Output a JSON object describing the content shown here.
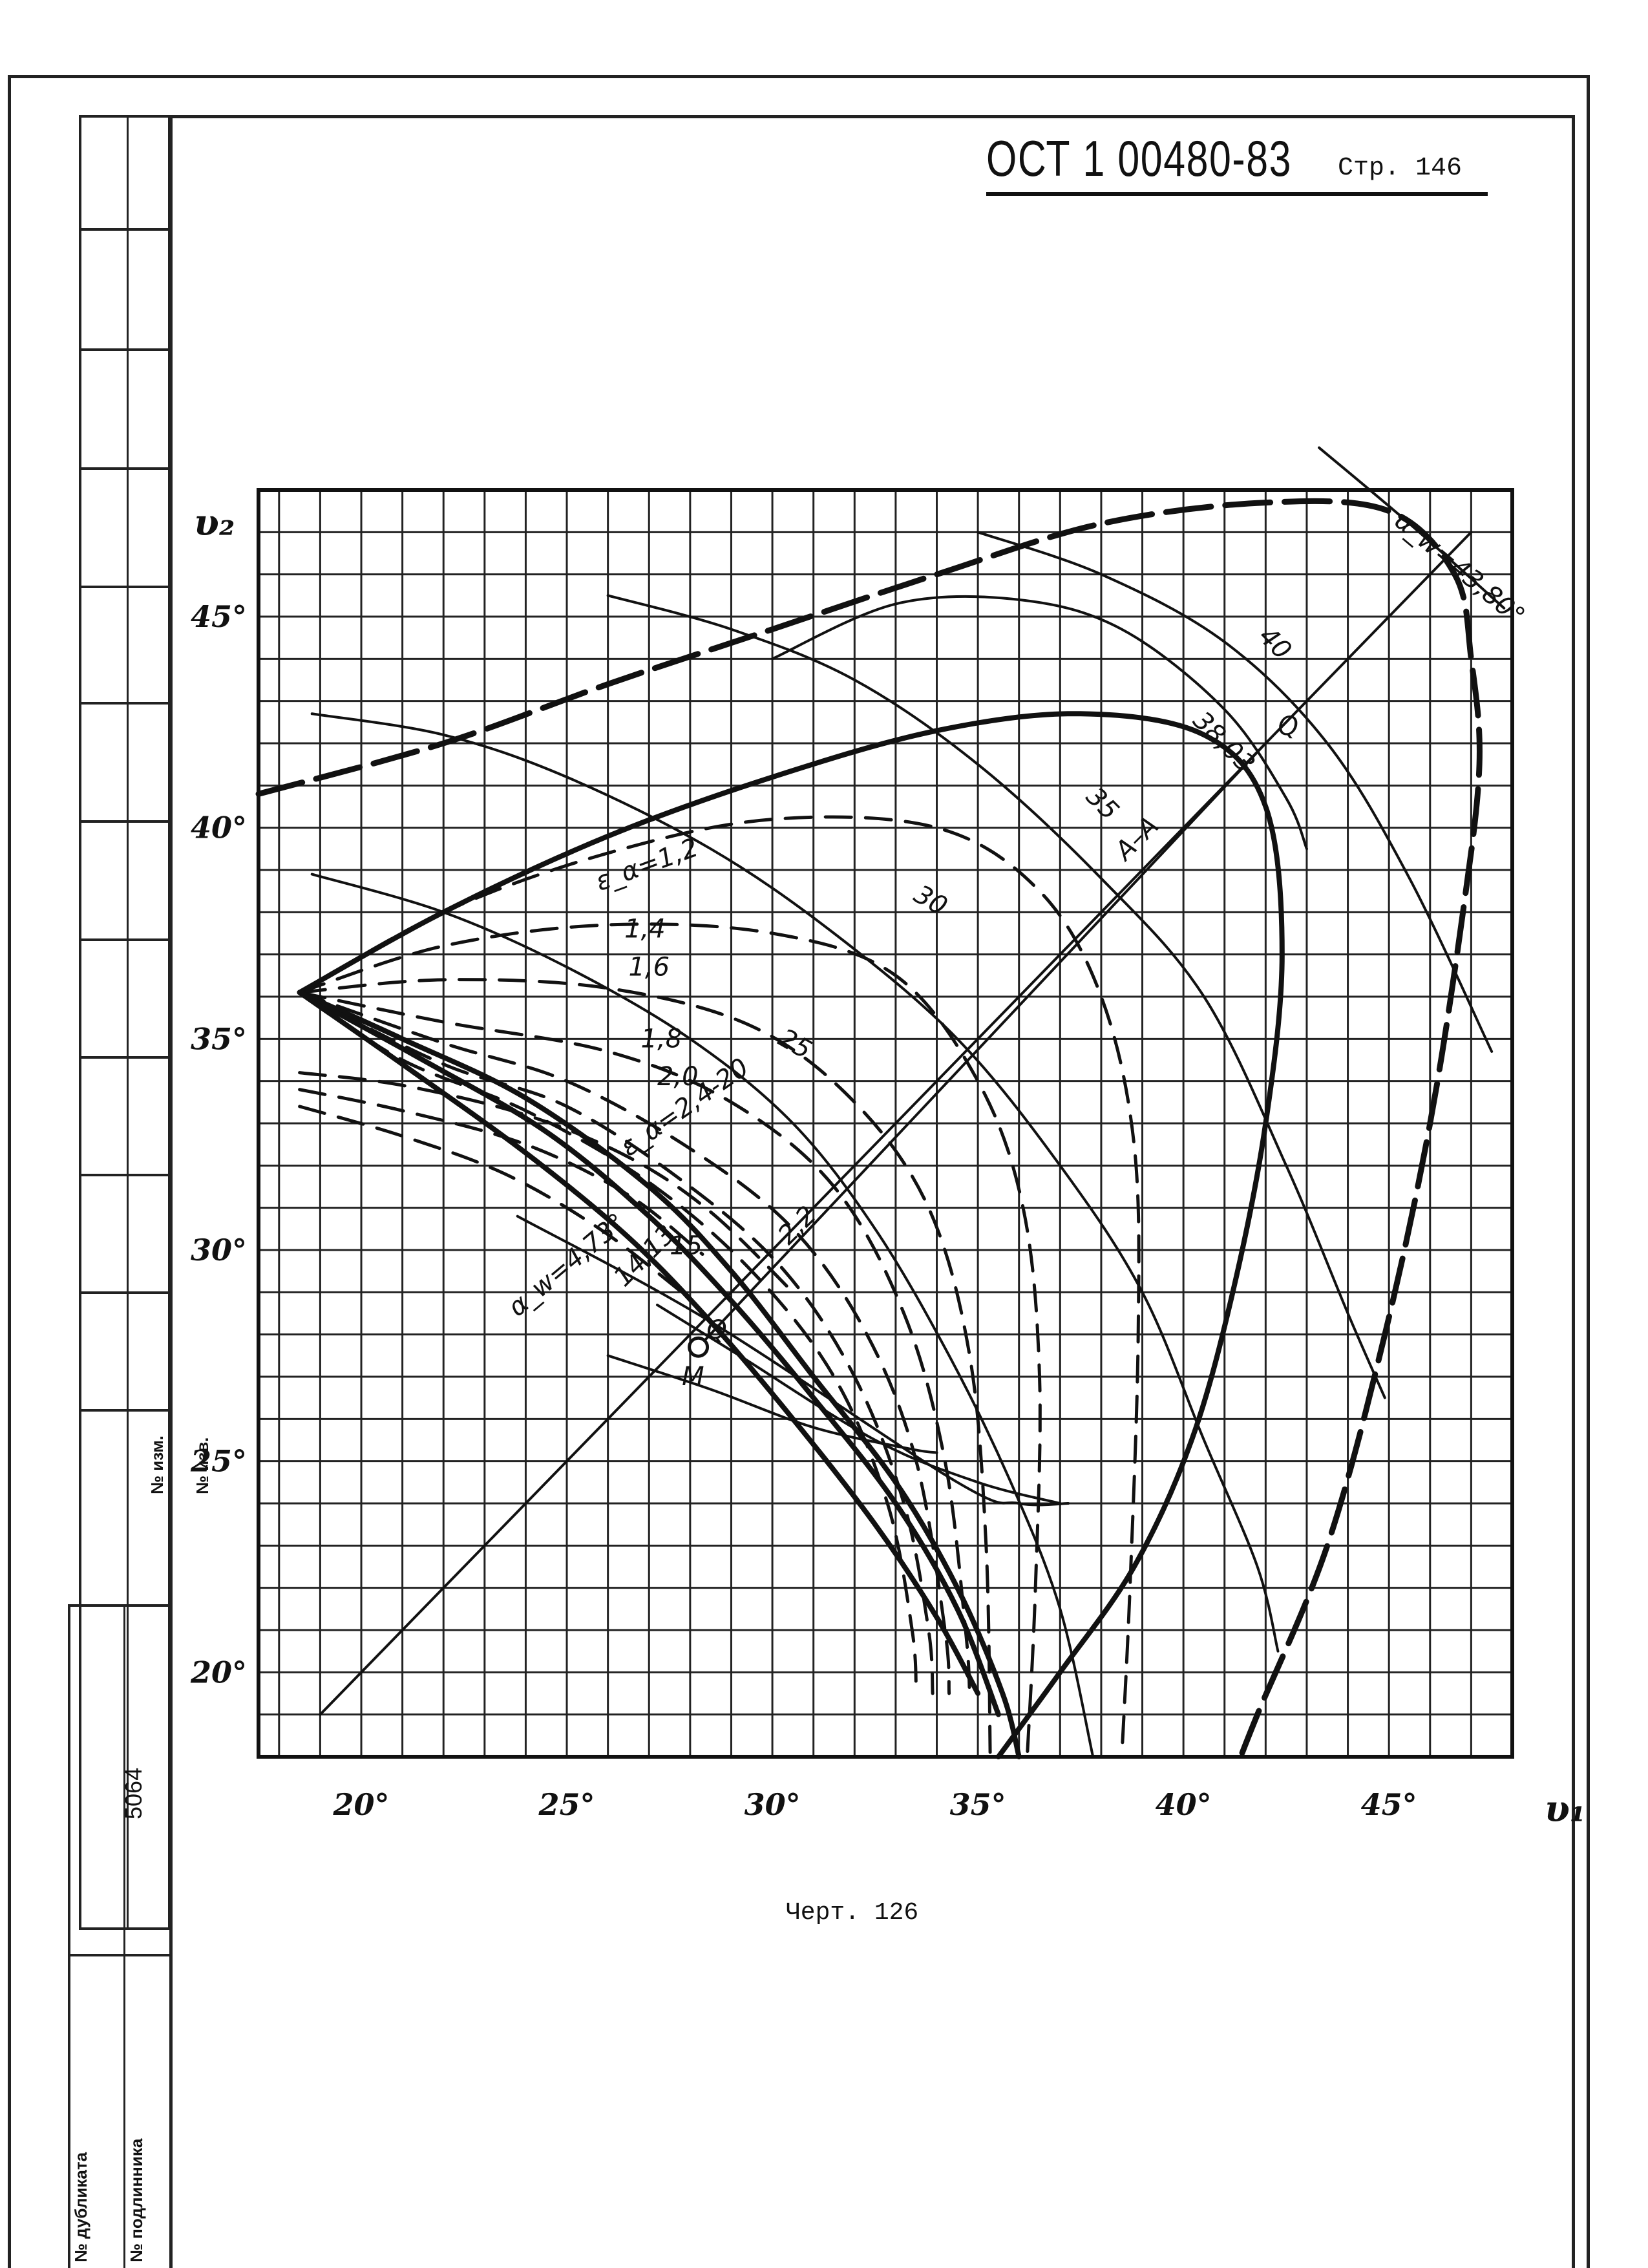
{
  "header": {
    "doc_number": "ОСТ 1 00480-83",
    "page_label": "Стр. 146"
  },
  "caption": "Черт. 126",
  "side_stamp": {
    "serial": "5064",
    "labels": [
      "№ изм.",
      "№ изв.",
      "№ дубликата",
      "№ подлинника"
    ]
  },
  "chart_data": {
    "type": "line",
    "xlabel": "υ₁",
    "ylabel": "υ₂",
    "xlim": [
      17.5,
      48
    ],
    "ylim": [
      18,
      48
    ],
    "x_ticks": [
      {
        "v": 20,
        "t": "20°"
      },
      {
        "v": 25,
        "t": "25°"
      },
      {
        "v": 30,
        "t": "30°"
      },
      {
        "v": 35,
        "t": "35°"
      },
      {
        "v": 40,
        "t": "40°"
      },
      {
        "v": 45,
        "t": "45°"
      }
    ],
    "y_ticks": [
      {
        "v": 20,
        "t": "20°"
      },
      {
        "v": 25,
        "t": "25°"
      },
      {
        "v": 30,
        "t": "30°"
      },
      {
        "v": 35,
        "t": "35°"
      },
      {
        "v": 40,
        "t": "40°"
      },
      {
        "v": 45,
        "t": "45°"
      }
    ],
    "grid": true,
    "series": [
      {
        "style": "thick-dash",
        "points": [
          [
            17.5,
            40.8
          ],
          [
            22,
            42
          ],
          [
            26,
            43.4
          ],
          [
            30,
            44.7
          ],
          [
            34,
            46
          ],
          [
            38,
            47.2
          ],
          [
            42,
            47.7
          ],
          [
            45,
            47.5
          ],
          [
            46.6,
            46
          ],
          [
            47,
            44
          ],
          [
            47.2,
            41.5
          ],
          [
            46.8,
            38
          ],
          [
            46,
            33
          ],
          [
            44.9,
            28
          ],
          [
            43.5,
            23
          ],
          [
            41.8,
            19
          ],
          [
            41.2,
            17.5
          ]
        ]
      },
      {
        "style": "thick",
        "points": [
          [
            18.5,
            36.1
          ],
          [
            22,
            38
          ],
          [
            26,
            39.8
          ],
          [
            30,
            41.2
          ],
          [
            34,
            42.3
          ],
          [
            37.5,
            42.7
          ],
          [
            40.5,
            42.2
          ],
          [
            42,
            40.5
          ],
          [
            42.4,
            37
          ],
          [
            42,
            33
          ],
          [
            41.2,
            29
          ],
          [
            40.2,
            25.5
          ],
          [
            38.8,
            22.5
          ],
          [
            37,
            20
          ],
          [
            35.5,
            18
          ]
        ]
      },
      {
        "style": "dash",
        "points": [
          [
            18.5,
            36.1
          ],
          [
            22,
            38
          ],
          [
            26,
            39.4
          ],
          [
            30,
            40.2
          ],
          [
            34,
            40
          ],
          [
            36.5,
            38.5
          ],
          [
            38,
            36
          ],
          [
            38.8,
            32.5
          ],
          [
            38.9,
            28
          ],
          [
            38.7,
            22
          ],
          [
            38.5,
            18
          ]
        ]
      },
      {
        "style": "dash",
        "points": [
          [
            18.5,
            36.1
          ],
          [
            22,
            37.2
          ],
          [
            26,
            37.7
          ],
          [
            30,
            37.5
          ],
          [
            33,
            36.5
          ],
          [
            35,
            34
          ],
          [
            36.1,
            31
          ],
          [
            36.5,
            27
          ],
          [
            36.4,
            22
          ],
          [
            36.2,
            18
          ]
        ]
      },
      {
        "style": "dash",
        "points": [
          [
            18.5,
            36.1
          ],
          [
            22,
            36.4
          ],
          [
            26,
            36.2
          ],
          [
            29.5,
            35.3
          ],
          [
            32,
            33.5
          ],
          [
            33.8,
            31
          ],
          [
            34.8,
            27.5
          ],
          [
            35.2,
            23
          ],
          [
            35.3,
            18
          ]
        ]
      },
      {
        "style": "dash",
        "points": [
          [
            18.5,
            36.1
          ],
          [
            22,
            35.4
          ],
          [
            26,
            34.7
          ],
          [
            29,
            33.5
          ],
          [
            31.5,
            31.5
          ],
          [
            33.2,
            28.5
          ],
          [
            34.2,
            25
          ],
          [
            34.7,
            21
          ],
          [
            34.8,
            19.5
          ]
        ]
      },
      {
        "style": "dash",
        "points": [
          [
            18.5,
            36.1
          ],
          [
            22,
            34.9
          ],
          [
            25,
            34
          ],
          [
            28,
            32.4
          ],
          [
            30.5,
            30.5
          ],
          [
            32.3,
            28
          ],
          [
            33.5,
            25
          ],
          [
            34.2,
            21
          ],
          [
            34.3,
            19.5
          ]
        ]
      },
      {
        "style": "dash",
        "points": [
          [
            18.5,
            36.1
          ],
          [
            22,
            34.4
          ],
          [
            25,
            33.4
          ],
          [
            28,
            31.5
          ],
          [
            30.3,
            29.5
          ],
          [
            32,
            27
          ],
          [
            33.2,
            24
          ],
          [
            33.8,
            21
          ],
          [
            33.9,
            19.5
          ]
        ]
      },
      {
        "style": "dash",
        "points": [
          [
            18.5,
            36.1
          ],
          [
            21,
            34.5
          ],
          [
            24,
            33.3
          ],
          [
            27,
            31.6
          ],
          [
            29.5,
            29.5
          ],
          [
            31.5,
            27
          ],
          [
            32.8,
            24
          ],
          [
            33.4,
            21
          ],
          [
            33.5,
            19.5
          ]
        ]
      },
      {
        "style": "thick",
        "points": [
          [
            18.5,
            36.1
          ],
          [
            21,
            35
          ],
          [
            24,
            33.6
          ],
          [
            27,
            31.5
          ],
          [
            29,
            29.5
          ],
          [
            31,
            27
          ],
          [
            33,
            24.5
          ],
          [
            34.5,
            22
          ],
          [
            35.6,
            19.5
          ],
          [
            36,
            18
          ]
        ]
      },
      {
        "style": "thick",
        "points": [
          [
            18.5,
            36.1
          ],
          [
            21.5,
            34.5
          ],
          [
            24.5,
            32.8
          ],
          [
            27,
            30.8
          ],
          [
            29,
            28.8
          ],
          [
            31,
            26.5
          ],
          [
            33,
            24
          ],
          [
            34.5,
            21.5
          ],
          [
            35.5,
            19
          ]
        ]
      },
      {
        "style": "thick",
        "points": [
          [
            18.5,
            36.1
          ],
          [
            21,
            34.4
          ],
          [
            24,
            32.3
          ],
          [
            26.5,
            30.3
          ],
          [
            28.5,
            28.3
          ],
          [
            30.5,
            26
          ],
          [
            32.5,
            23.5
          ],
          [
            34,
            21.3
          ],
          [
            35,
            19.5
          ]
        ]
      },
      {
        "style": "dash",
        "points": [
          [
            18.5,
            34.2
          ],
          [
            21,
            33.9
          ],
          [
            24,
            33.2
          ],
          [
            26.5,
            32.2
          ],
          [
            28.5,
            30.9
          ],
          [
            30.5,
            29
          ]
        ]
      },
      {
        "style": "dash",
        "points": [
          [
            18.5,
            33.8
          ],
          [
            21,
            33.3
          ],
          [
            24,
            32.5
          ],
          [
            26.5,
            31.3
          ],
          [
            28.3,
            29.9
          ]
        ]
      },
      {
        "style": "dash",
        "points": [
          [
            18.5,
            33.4
          ],
          [
            21,
            32.7
          ],
          [
            23.5,
            31.8
          ],
          [
            25.8,
            30.5
          ],
          [
            27.8,
            29
          ]
        ]
      },
      {
        "style": "thin",
        "points": [
          [
            26,
            45.5
          ],
          [
            29,
            44.7
          ],
          [
            32,
            43.5
          ],
          [
            35,
            41.5
          ],
          [
            38,
            38.8
          ],
          [
            40.5,
            36
          ],
          [
            42.5,
            32
          ],
          [
            44,
            28.5
          ],
          [
            44.9,
            26.5
          ]
        ]
      },
      {
        "style": "thin",
        "points": [
          [
            18.8,
            42.7
          ],
          [
            22,
            42.2
          ],
          [
            25,
            41.2
          ],
          [
            28.5,
            39.5
          ],
          [
            31.5,
            37.5
          ],
          [
            34.5,
            35
          ],
          [
            37,
            32
          ],
          [
            39,
            29
          ],
          [
            40.5,
            25.5
          ],
          [
            41.8,
            22.5
          ],
          [
            42.3,
            20.5
          ]
        ]
      },
      {
        "style": "thin",
        "points": [
          [
            18.8,
            38.9
          ],
          [
            22,
            38
          ],
          [
            25,
            36.7
          ],
          [
            28,
            35
          ],
          [
            30.5,
            33
          ],
          [
            32.5,
            30.5
          ],
          [
            34.3,
            27.5
          ],
          [
            35.8,
            24.5
          ],
          [
            37,
            21.5
          ],
          [
            37.8,
            18
          ]
        ]
      },
      {
        "style": "thin",
        "points": [
          [
            35,
            47
          ],
          [
            38,
            46
          ],
          [
            41,
            44.4
          ],
          [
            43.5,
            42
          ],
          [
            45.5,
            38.8
          ],
          [
            47.5,
            34.7
          ]
        ]
      },
      {
        "style": "thin",
        "points": [
          [
            30,
            44
          ],
          [
            33,
            45.3
          ],
          [
            36,
            45.4
          ],
          [
            38.5,
            44.7
          ],
          [
            41,
            42.8
          ],
          [
            42.5,
            40.7
          ],
          [
            43,
            39.5
          ]
        ]
      },
      {
        "style": "thin",
        "points": [
          [
            23.8,
            30.8
          ],
          [
            28.5,
            28.3
          ],
          [
            34.5,
            24.5
          ],
          [
            36,
            24
          ],
          [
            37.2,
            24
          ]
        ]
      },
      {
        "style": "thin",
        "points": [
          [
            27.2,
            28.7
          ],
          [
            29.2,
            27.5
          ],
          [
            32.5,
            25.5
          ],
          [
            35,
            24.5
          ],
          [
            37,
            24
          ]
        ]
      },
      {
        "style": "thin",
        "points": [
          [
            26,
            27.5
          ],
          [
            28.5,
            26.7
          ],
          [
            31,
            25.8
          ],
          [
            33.3,
            25.3
          ],
          [
            34,
            25.2
          ]
        ]
      },
      {
        "style": "thin",
        "points": [
          [
            43.3,
            49
          ],
          [
            45.5,
            47.2
          ],
          [
            47.8,
            45.2
          ]
        ]
      },
      {
        "style": "thin",
        "points": [
          [
            28.2,
            27.7
          ],
          [
            42,
            42
          ]
        ]
      },
      {
        "style": "thin",
        "points": [
          [
            19,
            19
          ],
          [
            47,
            47
          ]
        ]
      }
    ],
    "markers": [
      {
        "x": 28.2,
        "y": 27.7,
        "label": "M"
      }
    ],
    "annotations": [
      {
        "t": "40",
        "x": 41.8,
        "y": 44.5,
        "rot": 45
      },
      {
        "t": "38,03",
        "x": 40.2,
        "y": 42.5,
        "rot": 45
      },
      {
        "t": "Q",
        "x": 42.3,
        "y": 42.2,
        "rot": 0
      },
      {
        "t": "35",
        "x": 37.6,
        "y": 40.7,
        "rot": 45
      },
      {
        "t": "A–A",
        "x": 38.6,
        "y": 39.2,
        "rot": -45
      },
      {
        "t": "30",
        "x": 33.4,
        "y": 38.3,
        "rot": 30
      },
      {
        "t": "ε_α=1,2",
        "x": 25.8,
        "y": 38.5,
        "rot": -20
      },
      {
        "t": "1,4",
        "x": 26.4,
        "y": 37.4,
        "rot": 0
      },
      {
        "t": "1,6",
        "x": 26.5,
        "y": 36.5,
        "rot": 0
      },
      {
        "t": "25",
        "x": 30.1,
        "y": 34.9,
        "rot": 30
      },
      {
        "t": "1,8",
        "x": 26.8,
        "y": 34.8,
        "rot": 0
      },
      {
        "t": "2,0",
        "x": 27.2,
        "y": 33.9,
        "rot": 0
      },
      {
        "t": "ε_α=2,4-20",
        "x": 26.5,
        "y": 32.2,
        "rot": -35
      },
      {
        "t": "15",
        "x": 27.5,
        "y": 29.9,
        "rot": 0
      },
      {
        "t": "2,2",
        "x": 30.4,
        "y": 30.1,
        "rot": -45
      },
      {
        "t": "14,13",
        "x": 26.4,
        "y": 29.1,
        "rot": -45
      },
      {
        "t": "α_w=4,73°",
        "x": 23.8,
        "y": 28.4,
        "rot": -40
      },
      {
        "t": "M",
        "x": 27.8,
        "y": 26.8,
        "rot": 0
      },
      {
        "t": "Q",
        "x": 28.4,
        "y": 27.9,
        "rot": 0
      },
      {
        "t": "α_w=43,80°",
        "x": 45.1,
        "y": 47.2,
        "rot": 40
      }
    ]
  }
}
